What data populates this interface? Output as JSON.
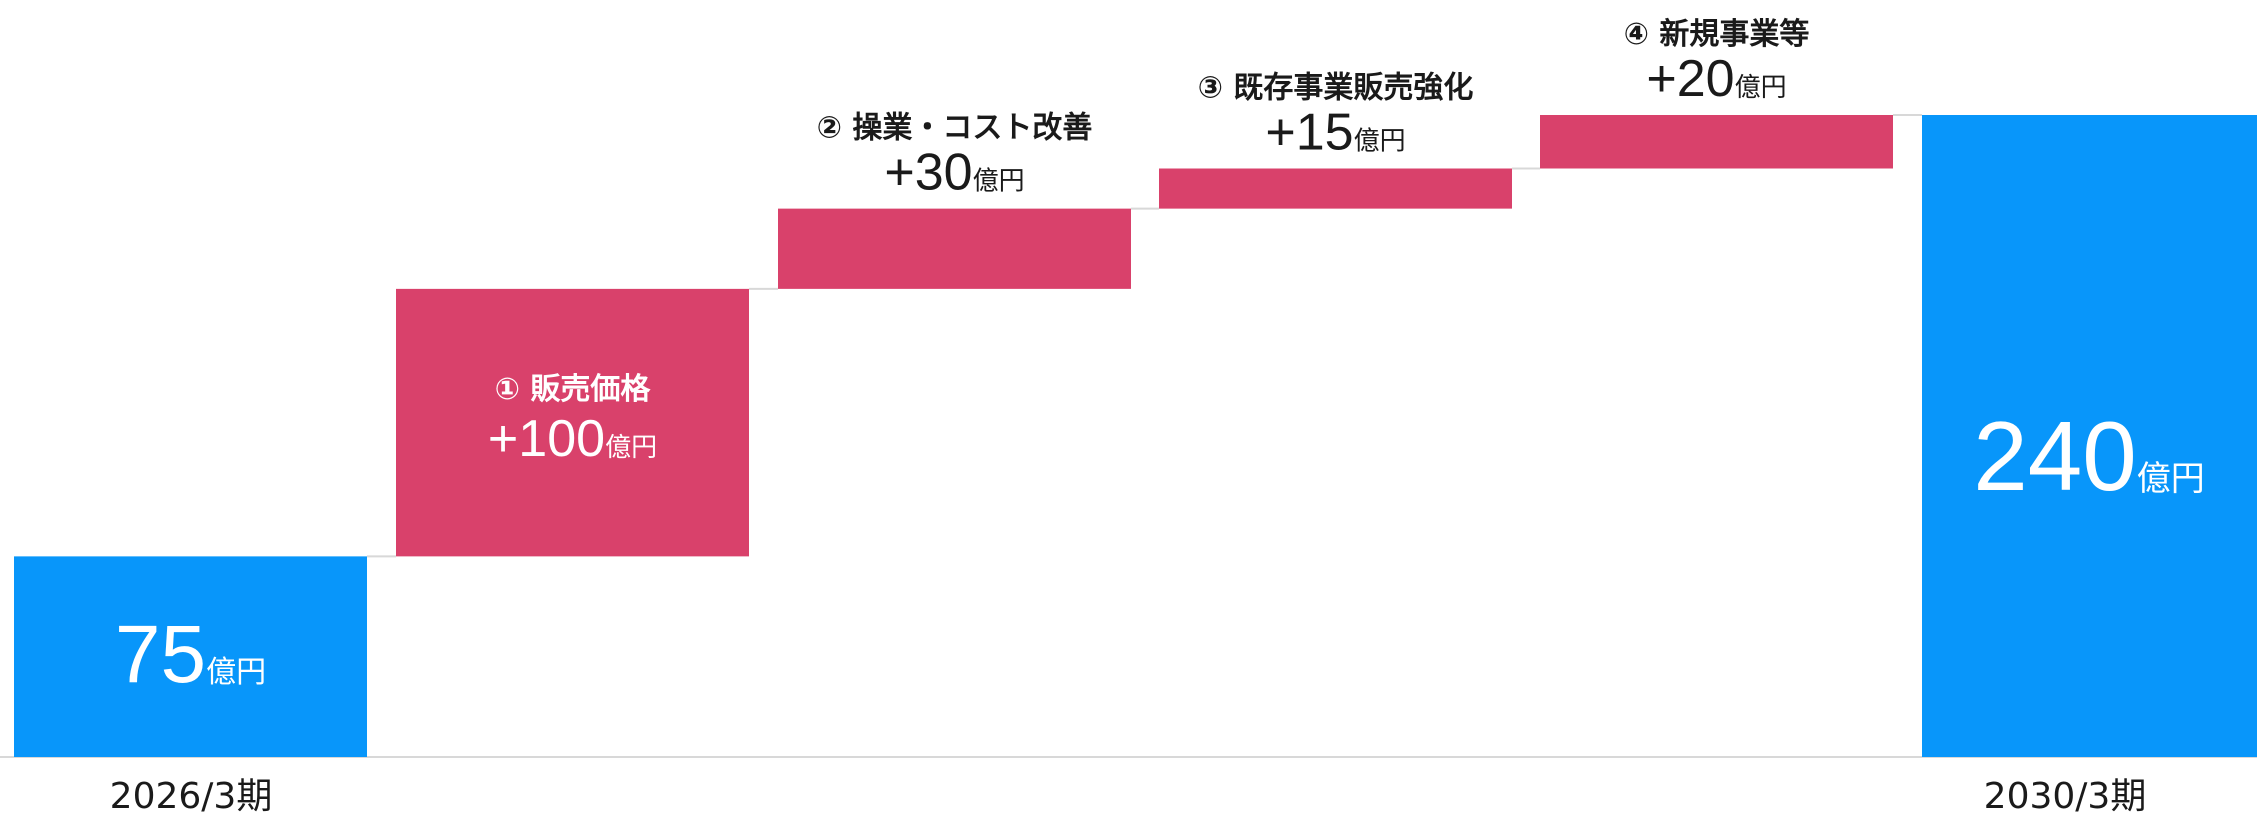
{
  "chart_data": {
    "type": "waterfall",
    "unit": "億円",
    "ylim": [
      0,
      240
    ],
    "colors": {
      "total": "#0896FA",
      "increment": "#D9416B",
      "white_text": "#FFFFFF",
      "dark_text": "#1A1A1A",
      "axis": "#D8D8D8",
      "connector": "#D8D8D8"
    },
    "start": {
      "label": "2026/3期",
      "value": 75,
      "value_text": "75",
      "unit": "億円"
    },
    "steps": [
      {
        "label": "① 販売価格",
        "value": 100,
        "value_text": "+100",
        "unit": "億円"
      },
      {
        "label": "② 操業・コスト改善",
        "value": 30,
        "value_text": "+30",
        "unit": "億円"
      },
      {
        "label": "③ 既存事業販売強化",
        "value": 15,
        "value_text": "+15",
        "unit": "億円"
      },
      {
        "label": "④ 新規事業等",
        "value": 20,
        "value_text": "+20",
        "unit": "億円"
      }
    ],
    "end": {
      "label": "2030/3期",
      "value": 240,
      "value_text": "240",
      "unit": "億円"
    }
  }
}
